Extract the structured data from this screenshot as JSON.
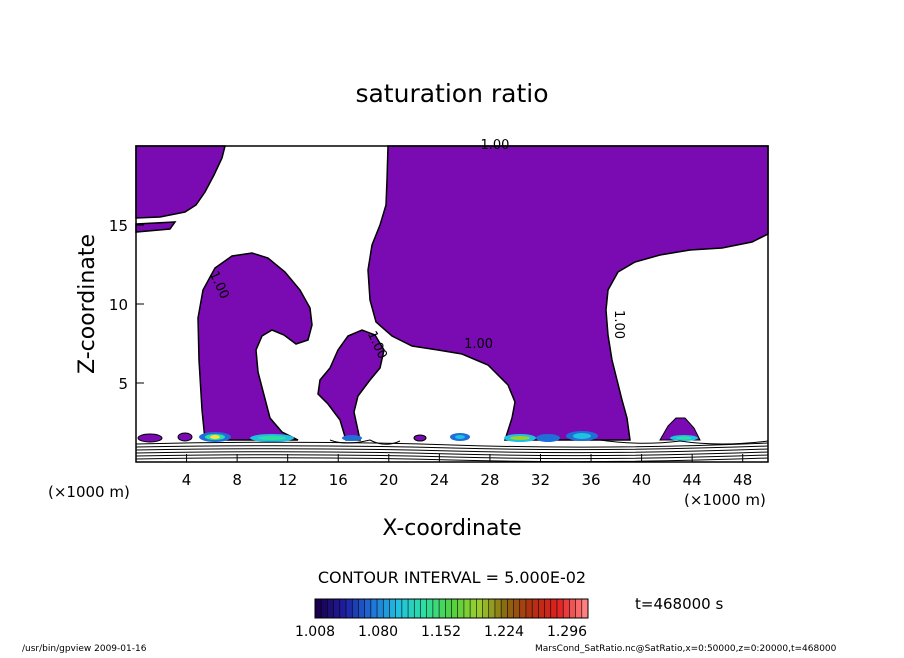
{
  "chart_data": {
    "type": "contour",
    "title": "saturation ratio",
    "xlabel": "X-coordinate",
    "ylabel": "Z-coordinate",
    "x_unit_label": "(×1000 m)",
    "z_unit_label": "(×1000 m)",
    "xlim": [
      0,
      50
    ],
    "zlim": [
      0,
      20
    ],
    "x_ticks": [
      4,
      8,
      12,
      16,
      20,
      24,
      28,
      32,
      36,
      40,
      44,
      48
    ],
    "z_ticks": [
      5,
      10,
      15
    ],
    "contour_interval_text": "CONTOUR INTERVAL = 5.000E-02",
    "contour_labels": [
      {
        "text": "1.00",
        "x": 28.4,
        "z": 19.8
      },
      {
        "text": "1.00",
        "x": 6.3,
        "z": 11.1
      },
      {
        "text": "1.00",
        "x": 18.8,
        "z": 7.3
      },
      {
        "text": "1.00",
        "x": 27.1,
        "z": 7.2
      },
      {
        "text": "1.00",
        "x": 37.9,
        "z": 8.7
      }
    ],
    "fill_color": "#7a0ab1",
    "colorbar": {
      "ticks": [
        "1.008",
        "1.080",
        "1.152",
        "1.224",
        "1.296"
      ],
      "min": 1.008,
      "max": 1.32,
      "colors": [
        "#1a0050",
        "#1e1ea0",
        "#1f6fd8",
        "#20c0e0",
        "#2ee0a0",
        "#50d040",
        "#9ad030",
        "#8a6a10",
        "#b03010",
        "#e02020",
        "#ff8080"
      ]
    },
    "time_label": "t=468000 s"
  },
  "footer": {
    "left": "/usr/bin/gpview   2009-01-16",
    "right": "MarsCond_SatRatio.nc@SatRatio,x=0:50000,z=0:20000,t=468000"
  }
}
